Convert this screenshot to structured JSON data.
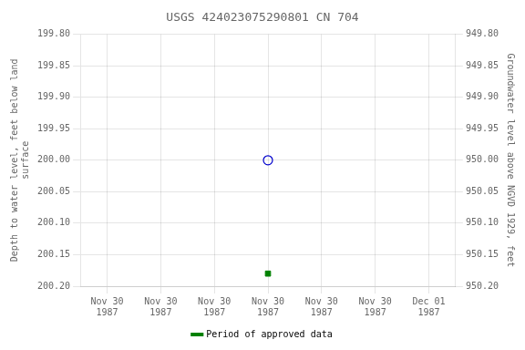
{
  "chart_data": {
    "type": "scatter",
    "title": "USGS 424023075290801 CN 704",
    "y_label": "Depth to water level, feet below land\nsurface",
    "y2_label": "Groundwater level above NGVD 1929, feet",
    "xlim": [
      -0.5,
      6.5
    ],
    "xticks": [
      {
        "value": 0,
        "label": "Nov 30\n1987"
      },
      {
        "value": 1,
        "label": "Nov 30\n1987"
      },
      {
        "value": 2,
        "label": "Nov 30\n1987"
      },
      {
        "value": 3,
        "label": "Nov 30\n1987"
      },
      {
        "value": 4,
        "label": "Nov 30\n1987"
      },
      {
        "value": 5,
        "label": "Nov 30\n1987"
      },
      {
        "value": 6,
        "label": "Dec 01\n1987"
      }
    ],
    "ylim": [
      200.2,
      199.8
    ],
    "yticks": [
      {
        "value": 199.8,
        "label": "199.80"
      },
      {
        "value": 199.85,
        "label": "199.85"
      },
      {
        "value": 199.9,
        "label": "199.90"
      },
      {
        "value": 199.95,
        "label": "199.95"
      },
      {
        "value": 200.0,
        "label": "200.00"
      },
      {
        "value": 200.05,
        "label": "200.05"
      },
      {
        "value": 200.1,
        "label": "200.10"
      },
      {
        "value": 200.15,
        "label": "200.15"
      },
      {
        "value": 200.2,
        "label": "200.20"
      }
    ],
    "y2lim": [
      950.2,
      949.8
    ],
    "y2ticks": [
      {
        "value": 949.8,
        "label": "949.80"
      },
      {
        "value": 949.85,
        "label": "949.85"
      },
      {
        "value": 949.9,
        "label": "949.90"
      },
      {
        "value": 949.95,
        "label": "949.95"
      },
      {
        "value": 950.0,
        "label": "950.00"
      },
      {
        "value": 950.05,
        "label": "950.05"
      },
      {
        "value": 950.1,
        "label": "950.10"
      },
      {
        "value": 950.15,
        "label": "950.15"
      },
      {
        "value": 950.2,
        "label": "950.20"
      }
    ],
    "series": [
      {
        "color": "#0000cc",
        "marker": "open_circle",
        "x": [
          3.0
        ],
        "values": [
          200.0
        ]
      },
      {
        "name": "Period of approved data",
        "color": "#008000",
        "marker": "square",
        "x": [
          3.0
        ],
        "values": [
          200.18
        ]
      }
    ],
    "grid": true,
    "legend": "bottom"
  }
}
